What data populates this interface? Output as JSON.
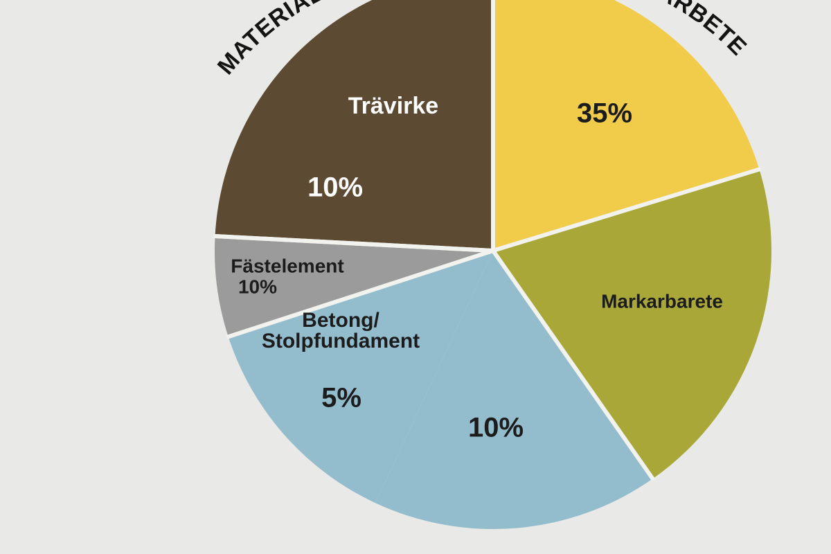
{
  "chart_data": {
    "type": "pie",
    "title": "",
    "group_labels": [
      "MATERIAL",
      "ARBETE"
    ],
    "slices": [
      {
        "label": "Trävirke",
        "value_label": "10%",
        "value": 10,
        "color": "#5c4a33",
        "text_color": "#ffffff"
      },
      {
        "label": "",
        "value_label": "35%",
        "value": 35,
        "color": "#f1cb4a",
        "text_color": "#1c1c1c"
      },
      {
        "label": "Markarbarete",
        "value_label": "",
        "value": null,
        "color": "#a9a738",
        "text_color": "#1c1c1c"
      },
      {
        "label": "",
        "value_label": "10%",
        "value": 10,
        "color": "#93bccd",
        "text_color": "#1c1c1c"
      },
      {
        "label": "Betong/\nStolpfundament",
        "value_label": "5%",
        "value": 5,
        "color": "#93bccd",
        "text_color": "#1c1c1c"
      },
      {
        "label": "Fästelement",
        "value_label": "10%",
        "value": 10,
        "color": "#9b9b9b",
        "text_color": "#1c1c1c"
      }
    ]
  }
}
